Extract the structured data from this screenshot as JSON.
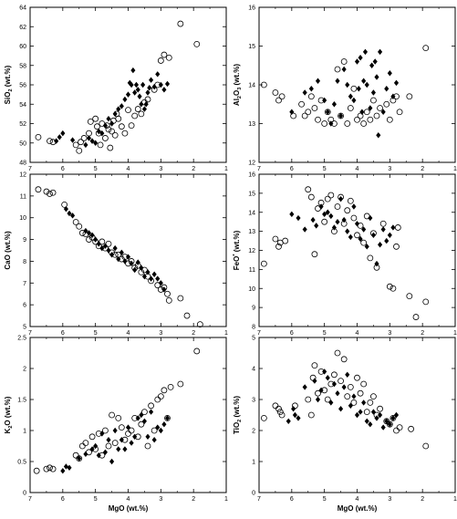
{
  "chart_data": [
    {
      "type": "scatter",
      "xlabel": "",
      "xlabel_main": "",
      "xlabel_unit": "",
      "ylabel": "SiO2 (wt.%)",
      "ylabel_main": "SiO",
      "ylabel_sub": "2",
      "ylabel_sup": "",
      "ylabel_unit": " (wt.%)",
      "xlim": [
        7,
        1
      ],
      "ylim": [
        48,
        64
      ],
      "xticks": [
        "7",
        "6",
        "5",
        "4",
        "3",
        "2",
        "1"
      ],
      "yticks": [
        "48",
        "50",
        "52",
        "54",
        "56",
        "58",
        "60",
        "62",
        "64"
      ],
      "series": [
        {
          "marker": "open-circle",
          "x": [
            6.75,
            6.4,
            6.3,
            5.6,
            5.5,
            5.45,
            5.35,
            5.2,
            5.15,
            5.0,
            4.95,
            4.9,
            4.85,
            4.8,
            4.7,
            4.65,
            4.6,
            4.55,
            4.5,
            4.45,
            4.4,
            4.35,
            4.3,
            4.2,
            4.1,
            4.0,
            3.9,
            3.8,
            3.7,
            3.6,
            3.5,
            3.4,
            3.2,
            3.1,
            3.0,
            2.9,
            2.75,
            2.4,
            1.9
          ],
          "y": [
            50.6,
            50.2,
            50.1,
            49.8,
            49.2,
            50.1,
            50.5,
            51.0,
            52.2,
            52.5,
            51.7,
            51.0,
            49.8,
            52.0,
            50.5,
            51.8,
            51.4,
            49.5,
            51.2,
            52.3,
            50.8,
            53.0,
            52.5,
            51.7,
            51.0,
            53.4,
            51.8,
            52.8,
            53.5,
            53.0,
            54.2,
            54.5,
            55.5,
            56.0,
            58.5,
            59.1,
            58.8,
            62.3,
            60.2
          ]
        },
        {
          "marker": "filled-diamond",
          "x": [
            6.2,
            6.1,
            6.0,
            5.7,
            5.3,
            5.2,
            5.1,
            5.0,
            4.9,
            4.8,
            4.7,
            4.6,
            4.5,
            4.4,
            4.3,
            4.2,
            4.1,
            4.0,
            3.95,
            3.9,
            3.85,
            3.8,
            3.75,
            3.7,
            3.65,
            3.6,
            3.55,
            3.5,
            3.45,
            3.4,
            3.35,
            3.3,
            3.2,
            3.1,
            3.0,
            2.9,
            2.8
          ],
          "y": [
            50.2,
            50.6,
            51.0,
            50.3,
            49.8,
            50.5,
            50.2,
            50.0,
            51.2,
            51.0,
            51.8,
            52.5,
            52.0,
            53.0,
            53.5,
            53.8,
            54.5,
            55.0,
            56.2,
            56.0,
            57.5,
            55.2,
            56.0,
            55.5,
            54.8,
            54.0,
            56.0,
            53.5,
            54.0,
            55.2,
            55.7,
            56.5,
            55.8,
            57.1,
            56.0,
            55.5,
            56.1
          ]
        }
      ]
    },
    {
      "type": "scatter",
      "xlabel": "",
      "xlabel_main": "",
      "xlabel_unit": "",
      "ylabel": "Al2O3 (wt.%)",
      "ylabel_main": "Al",
      "ylabel_sub": "2",
      "ylabel_main2": "O",
      "ylabel_sub2": "3",
      "ylabel_unit": " (wt.%)",
      "xlim": [
        7,
        1
      ],
      "ylim": [
        12,
        16
      ],
      "xticks": [
        "7",
        "6",
        "5",
        "4",
        "3",
        "2",
        "1"
      ],
      "yticks": [
        "12",
        "13",
        "14",
        "15",
        "16"
      ],
      "series": [
        {
          "marker": "open-circle",
          "x": [
            6.85,
            6.5,
            6.4,
            6.3,
            5.95,
            5.7,
            5.6,
            5.5,
            5.4,
            5.3,
            5.2,
            5.1,
            5.0,
            4.9,
            4.8,
            4.7,
            4.6,
            4.5,
            4.4,
            4.3,
            4.2,
            4.1,
            4.0,
            3.9,
            3.8,
            3.7,
            3.6,
            3.5,
            3.4,
            3.3,
            3.1,
            3.0,
            2.9,
            2.8,
            2.7,
            2.4,
            1.9
          ],
          "y": [
            14.0,
            13.8,
            13.6,
            13.7,
            13.2,
            13.5,
            13.2,
            13.3,
            13.7,
            13.4,
            13.1,
            13.6,
            13.0,
            13.3,
            13.1,
            13.0,
            14.4,
            13.2,
            14.6,
            13.0,
            13.4,
            13.9,
            13.1,
            13.2,
            13.0,
            13.3,
            13.1,
            13.6,
            13.2,
            13.4,
            13.5,
            13.1,
            13.6,
            13.7,
            13.3,
            13.7,
            14.95
          ]
        },
        {
          "marker": "filled-diamond",
          "x": [
            6.0,
            5.6,
            5.4,
            5.2,
            5.0,
            4.9,
            4.8,
            4.7,
            4.6,
            4.5,
            4.4,
            4.3,
            4.2,
            4.1,
            4.0,
            3.95,
            3.9,
            3.85,
            3.8,
            3.75,
            3.7,
            3.6,
            3.55,
            3.5,
            3.45,
            3.4,
            3.35,
            3.3,
            3.2,
            3.1,
            3.0,
            2.9,
            2.8
          ],
          "y": [
            13.3,
            13.8,
            13.9,
            14.1,
            13.6,
            13.3,
            13.0,
            13.5,
            14.1,
            13.2,
            14.4,
            14.0,
            13.7,
            13.6,
            14.6,
            13.9,
            14.7,
            13.3,
            14.1,
            14.85,
            14.0,
            13.4,
            14.5,
            13.8,
            14.6,
            14.2,
            12.7,
            14.85,
            13.3,
            13.9,
            14.3,
            13.7,
            14.05
          ]
        }
      ]
    },
    {
      "type": "scatter",
      "xlabel": "",
      "xlabel_main": "",
      "xlabel_unit": "",
      "ylabel": "CaO (wt.%)",
      "ylabel_main": "CaO",
      "ylabel_sub": "",
      "ylabel_sup": "",
      "ylabel_unit": " (wt.%)",
      "xlim": [
        7,
        1
      ],
      "ylim": [
        5,
        12
      ],
      "xticks": [
        "7",
        "6",
        "5",
        "4",
        "3",
        "2",
        "1"
      ],
      "yticks": [
        "5",
        "6",
        "7",
        "8",
        "9",
        "10",
        "11",
        "12"
      ],
      "series": [
        {
          "marker": "open-circle",
          "x": [
            6.75,
            6.5,
            6.4,
            6.3,
            5.95,
            5.6,
            5.5,
            5.4,
            5.3,
            5.2,
            5.1,
            5.0,
            4.9,
            4.8,
            4.7,
            4.6,
            4.5,
            4.4,
            4.3,
            4.2,
            4.1,
            4.0,
            3.9,
            3.8,
            3.7,
            3.6,
            3.5,
            3.4,
            3.3,
            3.1,
            3.0,
            2.9,
            2.8,
            2.75,
            2.4,
            2.2,
            1.8
          ],
          "y": [
            11.3,
            11.2,
            11.1,
            11.15,
            10.6,
            9.8,
            9.6,
            9.3,
            9.25,
            9.0,
            9.1,
            8.9,
            8.7,
            8.9,
            8.6,
            8.8,
            8.4,
            8.3,
            8.3,
            8.1,
            8.2,
            7.9,
            8.0,
            7.7,
            7.8,
            7.5,
            7.6,
            7.3,
            7.1,
            6.9,
            6.7,
            6.8,
            6.5,
            6.2,
            6.3,
            5.5,
            5.1
          ]
        },
        {
          "marker": "filled-diamond",
          "x": [
            5.9,
            5.8,
            5.7,
            5.3,
            5.2,
            5.1,
            5.0,
            4.9,
            4.8,
            4.7,
            4.6,
            4.5,
            4.4,
            4.3,
            4.2,
            4.1,
            4.0,
            3.9,
            3.8,
            3.7,
            3.6,
            3.5,
            3.4,
            3.3,
            3.2,
            3.1,
            3.0,
            2.9
          ],
          "y": [
            10.4,
            10.2,
            10.1,
            9.4,
            9.3,
            9.2,
            9.0,
            8.8,
            8.6,
            8.7,
            8.5,
            8.3,
            8.6,
            8.1,
            8.4,
            8.0,
            8.2,
            7.9,
            7.6,
            7.95,
            7.7,
            7.3,
            7.5,
            7.2,
            7.4,
            7.2,
            7.0,
            6.7
          ]
        }
      ]
    },
    {
      "type": "scatter",
      "xlabel": "",
      "xlabel_main": "",
      "xlabel_unit": "",
      "ylabel": "FeO* (wt.%)",
      "ylabel_main": "FeO",
      "ylabel_sub": "",
      "ylabel_sup": "*",
      "ylabel_unit": " (wt.%)",
      "xlim": [
        7,
        1
      ],
      "ylim": [
        8,
        16
      ],
      "xticks": [
        "7",
        "6",
        "5",
        "4",
        "3",
        "2",
        "1"
      ],
      "yticks": [
        "8",
        "9",
        "10",
        "11",
        "12",
        "13",
        "14",
        "15",
        "16"
      ],
      "series": [
        {
          "marker": "open-circle",
          "x": [
            6.85,
            6.5,
            6.4,
            6.35,
            6.2,
            5.5,
            5.4,
            5.3,
            5.2,
            5.1,
            5.0,
            4.9,
            4.8,
            4.7,
            4.6,
            4.5,
            4.4,
            4.3,
            4.2,
            4.1,
            4.0,
            3.9,
            3.8,
            3.7,
            3.6,
            3.5,
            3.4,
            3.2,
            3.0,
            2.9,
            2.75,
            2.8,
            2.4,
            2.2,
            1.9
          ],
          "y": [
            11.3,
            12.6,
            12.2,
            12.4,
            12.5,
            15.2,
            14.8,
            11.8,
            14.2,
            14.5,
            13.5,
            14.7,
            14.9,
            13.0,
            14.3,
            14.8,
            13.4,
            14.1,
            14.6,
            13.7,
            12.8,
            13.3,
            12.4,
            13.8,
            11.6,
            12.9,
            11.1,
            13.4,
            10.1,
            10.0,
            13.2,
            12.2,
            9.6,
            8.5,
            9.3
          ]
        },
        {
          "marker": "filled-diamond",
          "x": [
            6.0,
            5.8,
            5.6,
            5.35,
            5.25,
            5.1,
            5.0,
            4.9,
            4.8,
            4.7,
            4.6,
            4.5,
            4.4,
            4.3,
            4.2,
            4.1,
            4.0,
            3.9,
            3.8,
            3.7,
            3.6,
            3.5,
            3.4,
            3.3,
            3.2,
            3.1,
            3.0,
            2.9
          ],
          "y": [
            13.9,
            13.7,
            13.1,
            13.6,
            13.3,
            14.3,
            13.9,
            14.0,
            13.8,
            13.2,
            13.5,
            14.7,
            13.6,
            13.0,
            12.7,
            14.3,
            13.4,
            12.6,
            13.1,
            12.2,
            13.7,
            12.8,
            11.3,
            12.3,
            13.1,
            12.5,
            12.8,
            13.2
          ]
        }
      ]
    },
    {
      "type": "scatter",
      "xlabel": "MgO (wt.%)",
      "xlabel_main": "MgO",
      "xlabel_unit": " (wt.%)",
      "ylabel": "K2O (wt.%)",
      "ylabel_main": "K",
      "ylabel_sub": "2",
      "ylabel_main2": "O",
      "ylabel_sub2": "",
      "ylabel_unit": " (wt.%)",
      "xlim": [
        7,
        1
      ],
      "ylim": [
        0,
        2.5
      ],
      "xticks": [
        "7",
        "6",
        "5",
        "4",
        "3",
        "2",
        "1"
      ],
      "yticks": [
        "0",
        "0.5",
        "1",
        "1.5",
        "2",
        "2.5"
      ],
      "series": [
        {
          "marker": "open-circle",
          "x": [
            6.8,
            6.5,
            6.4,
            6.3,
            5.6,
            5.5,
            5.4,
            5.3,
            5.2,
            5.1,
            5.0,
            4.9,
            4.8,
            4.7,
            4.6,
            4.5,
            4.4,
            4.3,
            4.2,
            4.1,
            4.0,
            3.9,
            3.8,
            3.7,
            3.6,
            3.5,
            3.4,
            3.3,
            3.2,
            3.1,
            3.0,
            2.9,
            2.8,
            2.7,
            2.4,
            1.9
          ],
          "y": [
            0.35,
            0.38,
            0.4,
            0.38,
            0.6,
            0.55,
            0.75,
            0.8,
            0.65,
            0.9,
            0.7,
            0.95,
            0.6,
            1.0,
            0.75,
            1.25,
            0.8,
            1.2,
            1.05,
            0.85,
            0.95,
            1.0,
            1.2,
            0.9,
            1.1,
            1.3,
            0.75,
            1.4,
            1.0,
            1.5,
            1.55,
            1.65,
            1.2,
            1.7,
            1.75,
            2.28
          ]
        },
        {
          "marker": "filled-diamond",
          "x": [
            6.0,
            5.9,
            5.8,
            5.5,
            5.3,
            5.1,
            5.0,
            4.9,
            4.8,
            4.7,
            4.6,
            4.5,
            4.4,
            4.3,
            4.2,
            4.1,
            4.0,
            3.9,
            3.8,
            3.7,
            3.6,
            3.5,
            3.4,
            3.3,
            3.2,
            3.1,
            3.0,
            2.9,
            2.8
          ],
          "y": [
            0.35,
            0.42,
            0.4,
            0.55,
            0.62,
            0.7,
            0.75,
            0.6,
            0.95,
            0.65,
            0.85,
            0.5,
            1.0,
            0.7,
            0.85,
            0.7,
            1.05,
            0.8,
            0.9,
            1.2,
            1.25,
            1.15,
            0.9,
            1.3,
            0.85,
            1.05,
            1.0,
            1.1,
            1.2
          ]
        }
      ]
    },
    {
      "type": "scatter",
      "xlabel": "MgO (wt.%)",
      "xlabel_main": "MgO",
      "xlabel_unit": " (wt.%)",
      "ylabel": "TiO2 (wt.%)",
      "ylabel_main": "TiO",
      "ylabel_sub": "2",
      "ylabel_main2": "",
      "ylabel_sub2": "",
      "ylabel_unit": " (wt.%)",
      "xlim": [
        7,
        1
      ],
      "ylim": [
        0,
        5
      ],
      "xticks": [
        "7",
        "6",
        "5",
        "4",
        "3",
        "2",
        "1"
      ],
      "yticks": [
        "0",
        "1",
        "2",
        "3",
        "4",
        "5"
      ],
      "series": [
        {
          "marker": "open-circle",
          "x": [
            6.85,
            6.5,
            6.4,
            6.35,
            6.3,
            5.9,
            5.5,
            5.4,
            5.35,
            5.3,
            5.2,
            5.1,
            5.0,
            4.9,
            4.8,
            4.7,
            4.6,
            4.5,
            4.4,
            4.3,
            4.2,
            4.1,
            4.0,
            3.9,
            3.8,
            3.7,
            3.6,
            3.5,
            3.4,
            3.3,
            3.1,
            3.0,
            2.9,
            2.8,
            2.7,
            2.35,
            1.9
          ],
          "y": [
            2.4,
            2.8,
            2.7,
            2.6,
            2.5,
            2.8,
            3.0,
            2.5,
            3.7,
            4.1,
            3.2,
            3.9,
            3.3,
            3.0,
            3.5,
            3.8,
            4.5,
            3.6,
            4.3,
            3.1,
            3.4,
            2.9,
            3.7,
            3.2,
            3.5,
            2.6,
            2.9,
            3.1,
            2.5,
            2.7,
            2.3,
            2.2,
            2.4,
            2.0,
            2.1,
            2.05,
            1.5
          ]
        },
        {
          "marker": "filled-diamond",
          "x": [
            6.1,
            5.95,
            5.9,
            5.8,
            5.6,
            5.3,
            5.2,
            5.1,
            5.0,
            4.9,
            4.8,
            4.7,
            4.6,
            4.5,
            4.4,
            4.3,
            4.2,
            4.1,
            4.0,
            3.9,
            3.8,
            3.7,
            3.6,
            3.5,
            3.4,
            3.3,
            3.2,
            3.1,
            3.0,
            2.9,
            2.8
          ],
          "y": [
            2.3,
            2.7,
            2.5,
            2.4,
            3.4,
            3.6,
            3.0,
            3.3,
            3.9,
            3.7,
            2.9,
            3.5,
            3.2,
            2.7,
            3.4,
            3.8,
            2.8,
            3.1,
            2.5,
            2.6,
            2.9,
            2.3,
            2.2,
            2.6,
            2.4,
            2.5,
            2.1,
            2.3,
            2.2,
            2.4,
            2.5
          ]
        }
      ]
    }
  ]
}
